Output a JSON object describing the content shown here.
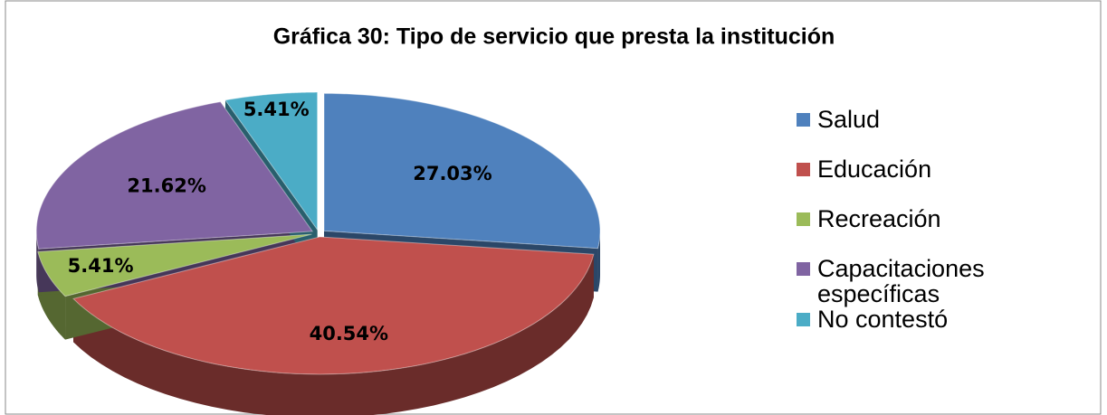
{
  "chart_data": {
    "type": "pie",
    "title": "Gráfica 30:  Tipo de servicio que presta la institución",
    "categories": [
      "Salud",
      "Educación",
      "Recreación",
      "Capacitaciones específicas",
      "No contestó"
    ],
    "values": [
      27.03,
      40.54,
      5.41,
      21.62,
      5.41
    ],
    "value_labels": [
      "27.03%",
      "40.54%",
      "5.41%",
      "21.62%",
      "5.41%"
    ],
    "colors": [
      "#4f81bd",
      "#c0504d",
      "#9bbb59",
      "#8064a2",
      "#4bacc6"
    ],
    "legend": "right"
  }
}
